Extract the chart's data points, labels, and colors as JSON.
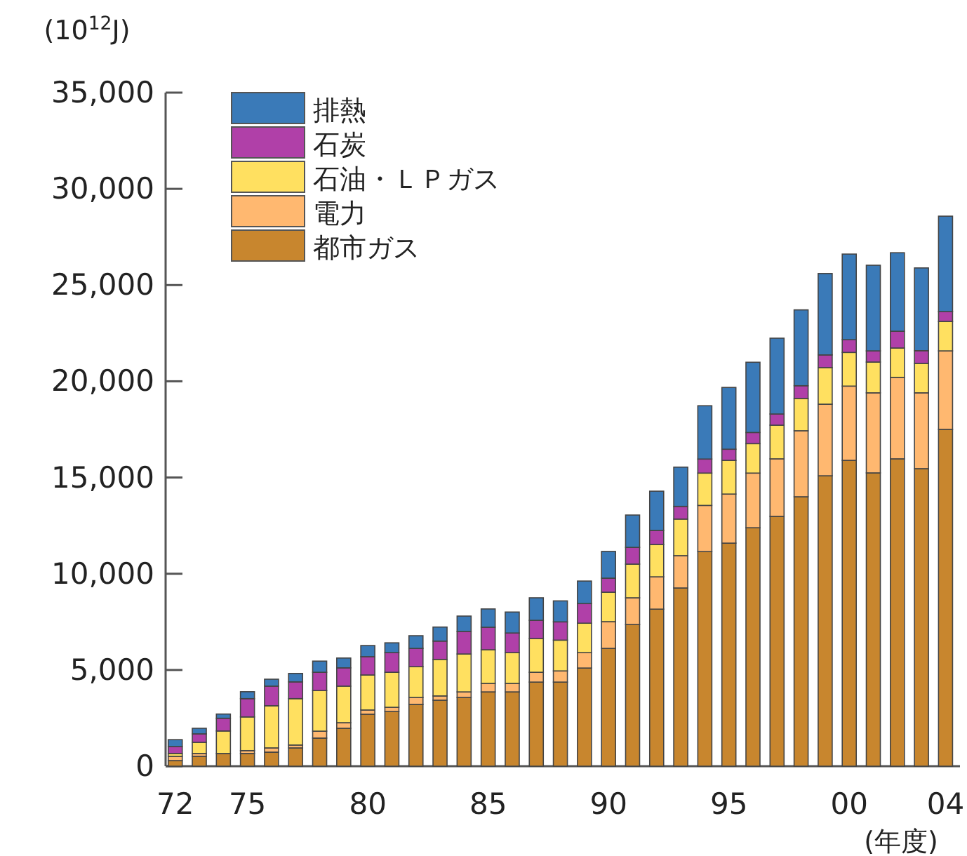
{
  "chart_data": {
    "type": "bar",
    "stacked": true,
    "ylabel": "(10$^{12}$J)",
    "xlabel": "(年度)",
    "categories": [
      "72",
      null,
      null,
      "75",
      null,
      null,
      null,
      null,
      "80",
      null,
      null,
      null,
      null,
      "85",
      null,
      null,
      null,
      null,
      "90",
      null,
      null,
      null,
      null,
      "95",
      null,
      null,
      null,
      null,
      "00",
      null,
      null,
      null,
      "04"
    ],
    "ylim": [
      0,
      35000
    ],
    "yticks": [
      0,
      {
        "value": 5000,
        "label": "5,000"
      },
      {
        "value": 10000,
        "label": "10,000"
      },
      {
        "value": 15000,
        "label": "15,000"
      },
      {
        "value": 20000,
        "label": "20,000"
      },
      {
        "value": 25000,
        "label": "25,000"
      },
      {
        "value": 30000,
        "label": "30,000"
      },
      {
        "value": 35000,
        "label": "35,000"
      }
    ],
    "legend": "top left",
    "series": [
      {
        "name": "都市ガス",
        "color": "#c8862e",
        "values": [
          290,
          510,
          660,
          660,
          730,
          950,
          1460,
          1970,
          2700,
          2840,
          3210,
          3430,
          3570,
          3860,
          3860,
          4370,
          4370,
          5100,
          6120,
          7360,
          8160,
          9260,
          11150,
          11590,
          12390,
          12980,
          14000,
          15090,
          15890,
          15240,
          15970,
          15460,
          17500
        ]
      },
      {
        "name": "電力",
        "color": "#ffb870",
        "values": [
          220,
          150,
          null,
          150,
          220,
          150,
          360,
          290,
          220,
          220,
          360,
          220,
          290,
          440,
          440,
          510,
          580,
          800,
          1390,
          1390,
          1680,
          1680,
          2400,
          2550,
          2840,
          2990,
          3430,
          3720,
          3860,
          4160,
          4230,
          3940,
          4080
        ]
      },
      {
        "name": "石油・ＬＰガス",
        "color": "#ffe060",
        "values": [
          150,
          580,
          1170,
          1750,
          2190,
          2410,
          2110,
          1900,
          1820,
          1820,
          1600,
          1900,
          1970,
          1750,
          1600,
          1750,
          1600,
          1530,
          1530,
          1750,
          1680,
          1900,
          1680,
          1750,
          1530,
          1750,
          1680,
          1900,
          1750,
          1600,
          1530,
          1530,
          1530
        ]
      },
      {
        "name": "石炭",
        "color": "#b040a8",
        "values": [
          360,
          440,
          660,
          950,
          1020,
          870,
          950,
          950,
          950,
          1020,
          950,
          950,
          1170,
          1170,
          1020,
          950,
          950,
          1020,
          730,
          870,
          730,
          660,
          730,
          580,
          580,
          580,
          660,
          660,
          660,
          580,
          870,
          660,
          510
        ]
      },
      {
        "name": "排熱",
        "color": "#3a7ab8",
        "values": [
          360,
          290,
          220,
          360,
          360,
          440,
          580,
          510,
          580,
          510,
          660,
          730,
          800,
          950,
          1090,
          1170,
          1090,
          1170,
          1390,
          1680,
          2040,
          2040,
          2770,
          3210,
          3650,
          3940,
          3940,
          4230,
          4450,
          4450,
          4080,
          4300,
          4960
        ]
      }
    ]
  }
}
